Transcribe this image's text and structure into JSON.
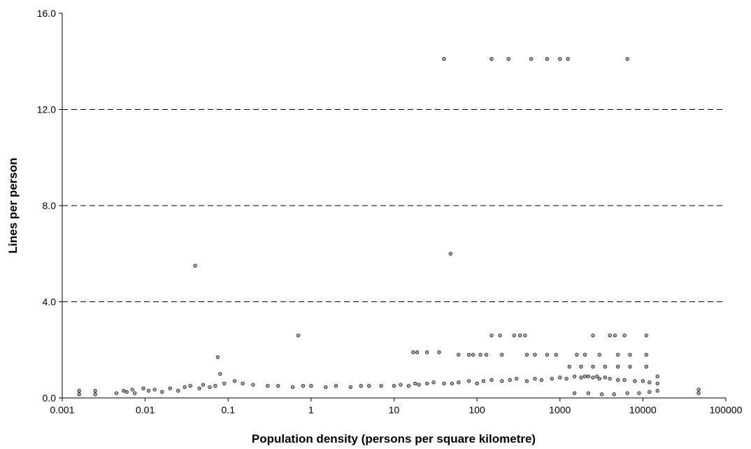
{
  "chart_data": {
    "type": "scatter",
    "title": "",
    "xlabel": "Population density (persons per square kilometre)",
    "ylabel": "Lines per person",
    "x_scale": "log",
    "xlim": [
      0.001,
      100000
    ],
    "ylim": [
      0,
      16
    ],
    "x_ticks": [
      "0.001",
      "0.01",
      "0.1",
      "1",
      "10",
      "100",
      "1000",
      "10000",
      "100000"
    ],
    "y_ticks": [
      "0.0",
      "4.0",
      "8.0",
      "12.0",
      "16.0"
    ],
    "grid": "horizontal dashed",
    "legend": "none",
    "colors": {
      "marker_fill": "#a6a6a6",
      "marker_edge": "#000000",
      "grid": "#000000"
    },
    "series": [
      {
        "x": [
          40,
          150,
          240,
          450,
          700,
          1000,
          1250,
          6500,
          0.04,
          48,
          0.7,
          0.075,
          150,
          190,
          280,
          330,
          380,
          2500,
          4000,
          4600,
          6000,
          11000,
          0.0016,
          0.0016,
          0.0025,
          0.0025,
          0.0045,
          0.0055,
          0.006,
          0.007,
          0.0075,
          0.0095,
          0.011,
          0.013,
          0.016,
          0.02,
          0.025,
          0.03,
          0.035,
          0.045,
          0.05,
          0.06,
          0.07,
          0.08,
          0.09,
          0.12,
          0.15,
          0.2,
          0.3,
          0.4,
          0.6,
          0.8,
          1,
          1.5,
          2,
          3,
          4,
          5,
          7,
          10,
          12,
          15,
          18,
          20,
          25,
          30,
          40,
          50,
          60,
          80,
          100,
          120,
          150,
          200,
          250,
          300,
          400,
          500,
          600,
          800,
          1000,
          1200,
          1500,
          1800,
          2000,
          2200,
          2500,
          2800,
          3000,
          3500,
          4000,
          5000,
          6000,
          8000,
          10000,
          12000,
          15000,
          15000,
          15000,
          47000,
          47000,
          17,
          19,
          25,
          35,
          60,
          80,
          90,
          110,
          130,
          200,
          400,
          500,
          700,
          900,
          1600,
          2000,
          3000,
          5000,
          7000,
          11000,
          1300,
          1800,
          2500,
          3500,
          5000,
          7000,
          11000,
          1500,
          2200,
          3200,
          4500,
          6500,
          9000,
          12000
        ],
        "y": [
          14.1,
          14.1,
          14.1,
          14.1,
          14.1,
          14.1,
          14.1,
          14.1,
          5.5,
          6.0,
          2.6,
          1.7,
          2.6,
          2.6,
          2.6,
          2.6,
          2.6,
          2.6,
          2.6,
          2.6,
          2.6,
          2.6,
          0.3,
          0.15,
          0.3,
          0.15,
          0.2,
          0.3,
          0.25,
          0.35,
          0.2,
          0.4,
          0.3,
          0.35,
          0.25,
          0.4,
          0.3,
          0.45,
          0.5,
          0.4,
          0.55,
          0.45,
          0.5,
          1.0,
          0.6,
          0.7,
          0.6,
          0.55,
          0.5,
          0.5,
          0.45,
          0.5,
          0.5,
          0.45,
          0.5,
          0.45,
          0.5,
          0.5,
          0.5,
          0.5,
          0.55,
          0.5,
          0.6,
          0.55,
          0.6,
          0.65,
          0.6,
          0.6,
          0.65,
          0.7,
          0.6,
          0.7,
          0.75,
          0.7,
          0.75,
          0.8,
          0.7,
          0.8,
          0.75,
          0.8,
          0.85,
          0.8,
          0.9,
          0.85,
          0.9,
          0.9,
          0.85,
          0.9,
          0.8,
          0.85,
          0.8,
          0.75,
          0.75,
          0.7,
          0.7,
          0.65,
          0.6,
          0.9,
          0.3,
          0.35,
          0.2,
          1.9,
          1.9,
          1.9,
          1.9,
          1.8,
          1.8,
          1.8,
          1.8,
          1.8,
          1.8,
          1.8,
          1.8,
          1.8,
          1.8,
          1.8,
          1.8,
          1.8,
          1.8,
          1.8,
          1.8,
          1.3,
          1.3,
          1.3,
          1.3,
          1.3,
          1.3,
          1.3,
          0.2,
          0.2,
          0.15,
          0.15,
          0.2,
          0.2,
          0.25
        ]
      }
    ]
  }
}
